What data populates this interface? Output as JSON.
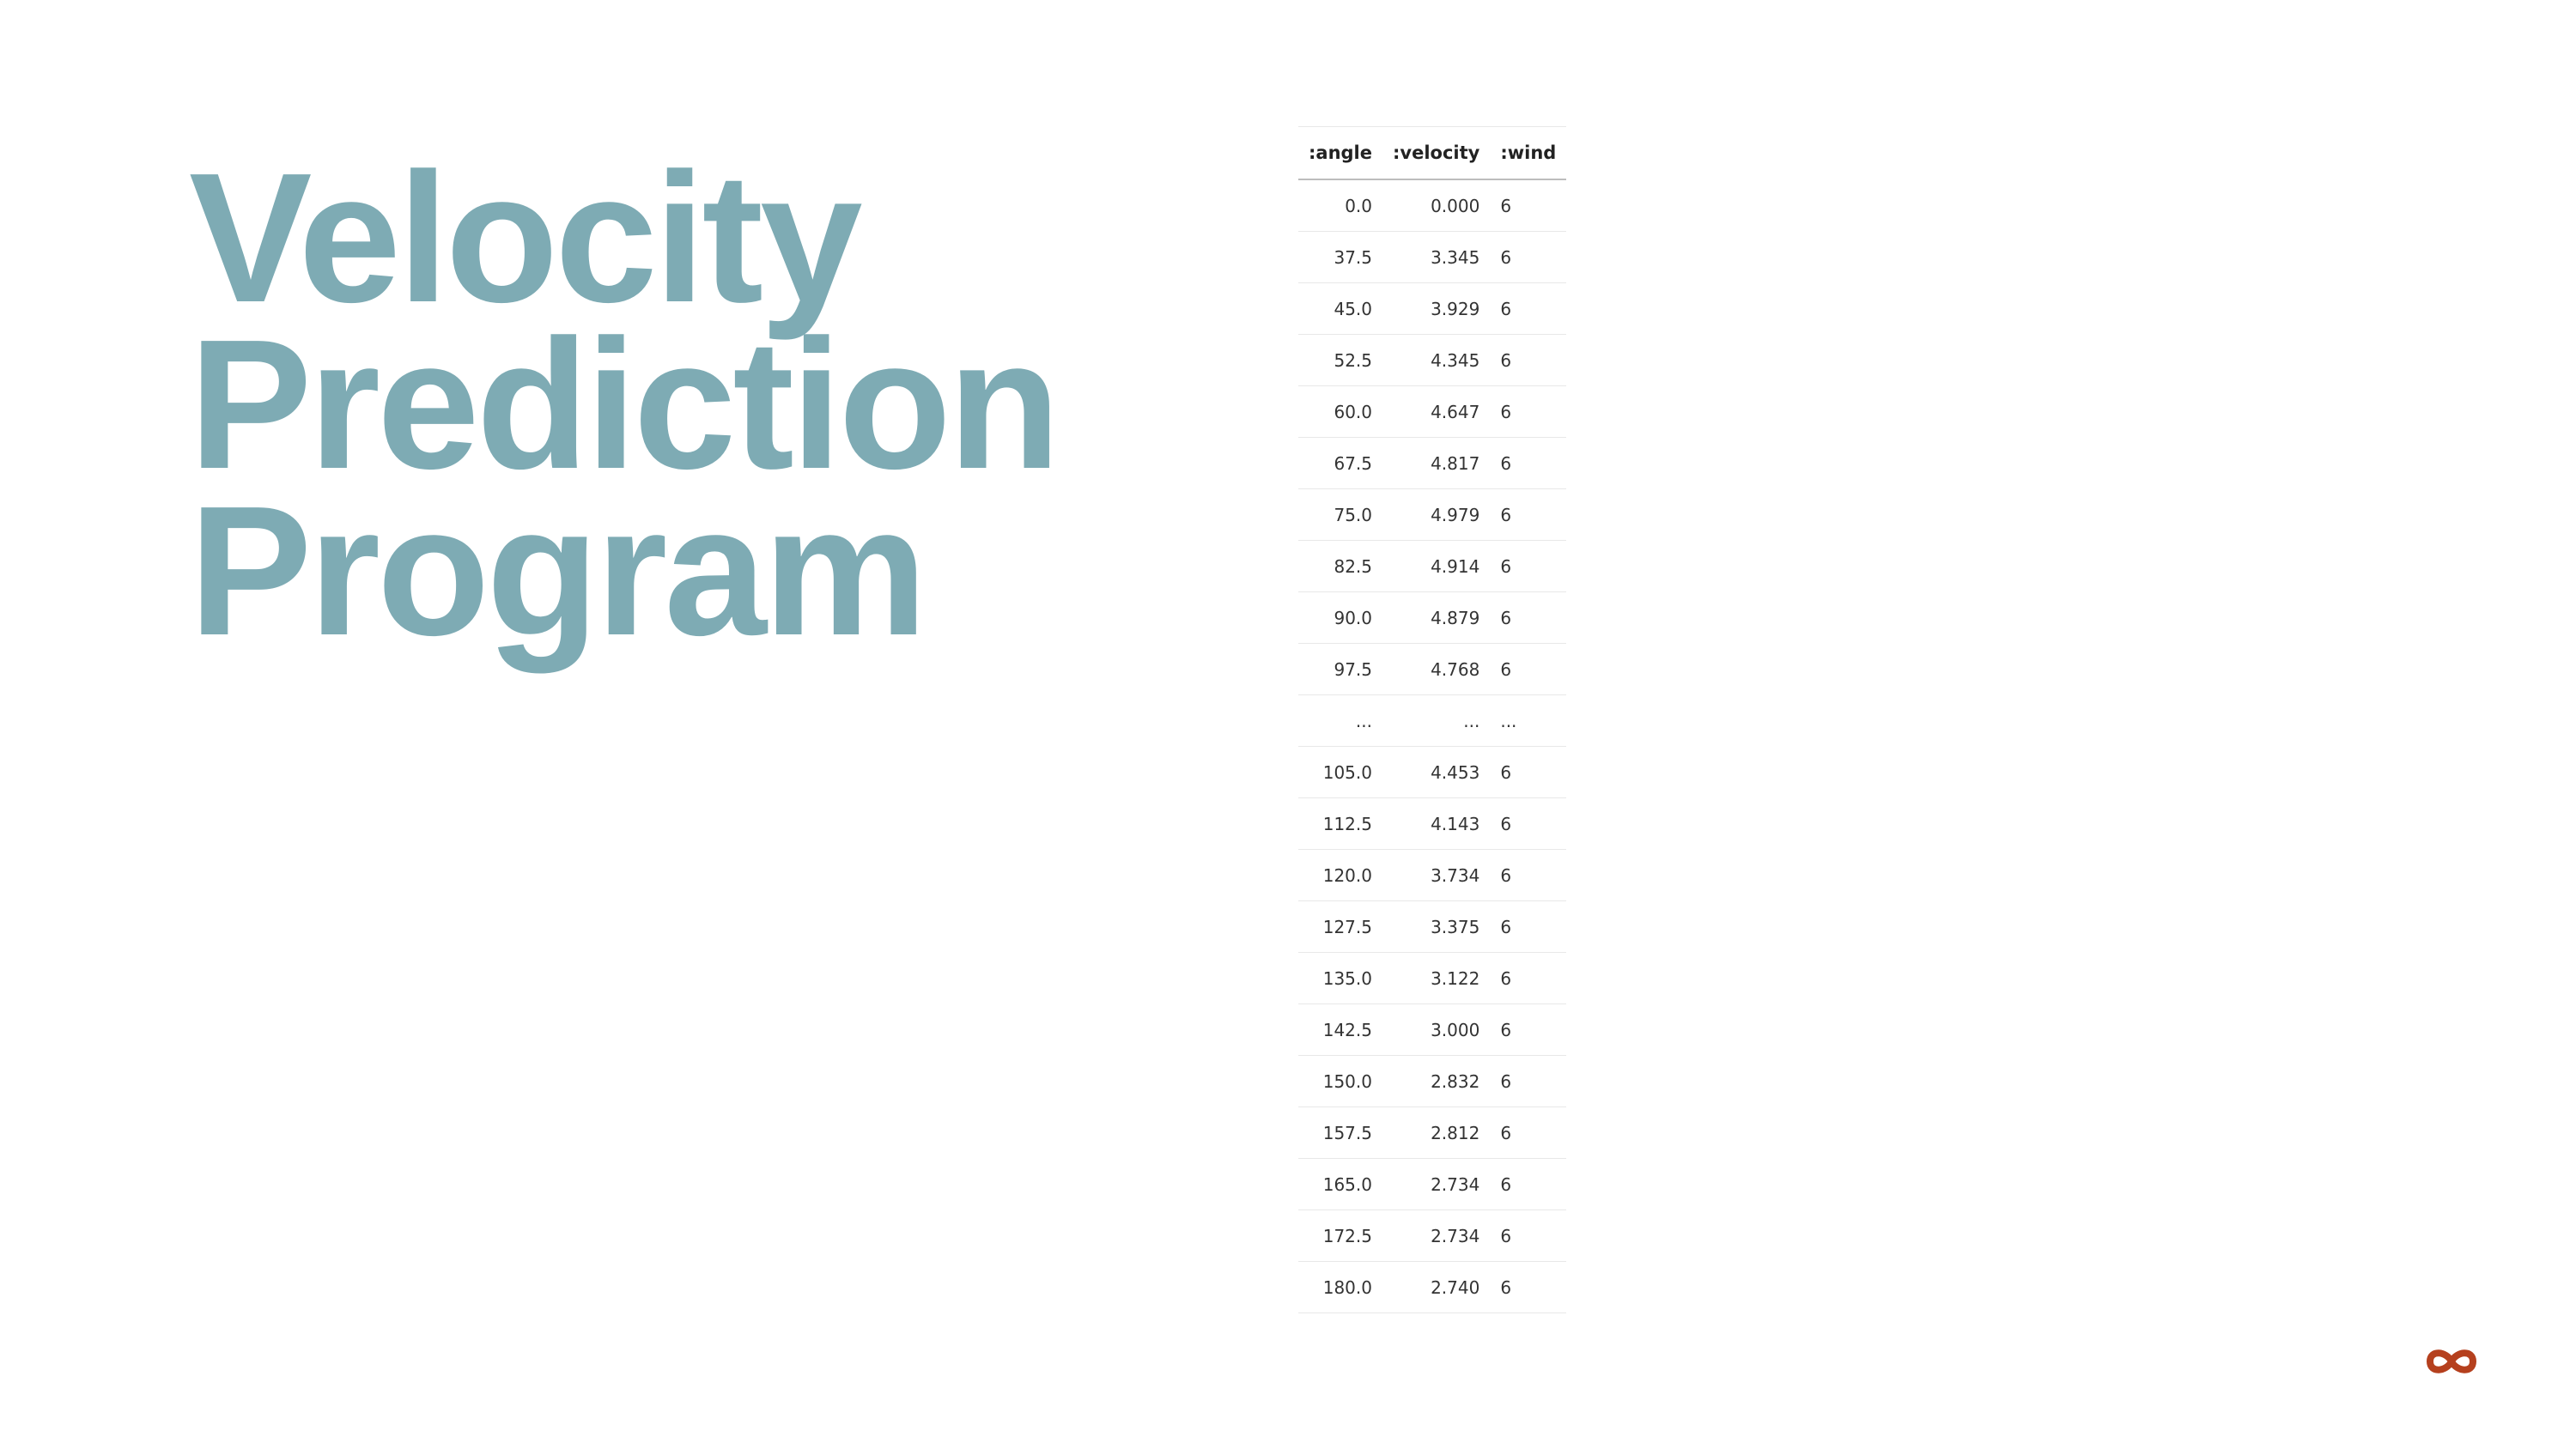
{
  "title_lines": [
    "Velocity",
    "Prediction",
    "Program"
  ],
  "table": {
    "columns": [
      ":angle",
      ":velocity",
      ":wind"
    ],
    "rows": [
      {
        "angle": "0.0",
        "velocity": "0.000",
        "wind": "6"
      },
      {
        "angle": "37.5",
        "velocity": "3.345",
        "wind": "6"
      },
      {
        "angle": "45.0",
        "velocity": "3.929",
        "wind": "6"
      },
      {
        "angle": "52.5",
        "velocity": "4.345",
        "wind": "6"
      },
      {
        "angle": "60.0",
        "velocity": "4.647",
        "wind": "6"
      },
      {
        "angle": "67.5",
        "velocity": "4.817",
        "wind": "6"
      },
      {
        "angle": "75.0",
        "velocity": "4.979",
        "wind": "6"
      },
      {
        "angle": "82.5",
        "velocity": "4.914",
        "wind": "6"
      },
      {
        "angle": "90.0",
        "velocity": "4.879",
        "wind": "6"
      },
      {
        "angle": "97.5",
        "velocity": "4.768",
        "wind": "6"
      },
      {
        "angle": "...",
        "velocity": "...",
        "wind": "..."
      },
      {
        "angle": "105.0",
        "velocity": "4.453",
        "wind": "6"
      },
      {
        "angle": "112.5",
        "velocity": "4.143",
        "wind": "6"
      },
      {
        "angle": "120.0",
        "velocity": "3.734",
        "wind": "6"
      },
      {
        "angle": "127.5",
        "velocity": "3.375",
        "wind": "6"
      },
      {
        "angle": "135.0",
        "velocity": "3.122",
        "wind": "6"
      },
      {
        "angle": "142.5",
        "velocity": "3.000",
        "wind": "6"
      },
      {
        "angle": "150.0",
        "velocity": "2.832",
        "wind": "6"
      },
      {
        "angle": "157.5",
        "velocity": "2.812",
        "wind": "6"
      },
      {
        "angle": "165.0",
        "velocity": "2.734",
        "wind": "6"
      },
      {
        "angle": "172.5",
        "velocity": "2.734",
        "wind": "6"
      },
      {
        "angle": "180.0",
        "velocity": "2.740",
        "wind": "6"
      }
    ]
  },
  "logo": {
    "icon": "infinity-logo-icon",
    "color": "#b5401e"
  },
  "colors": {
    "title": "#7eabb4",
    "text": "#333333",
    "background": "#ffffff"
  }
}
